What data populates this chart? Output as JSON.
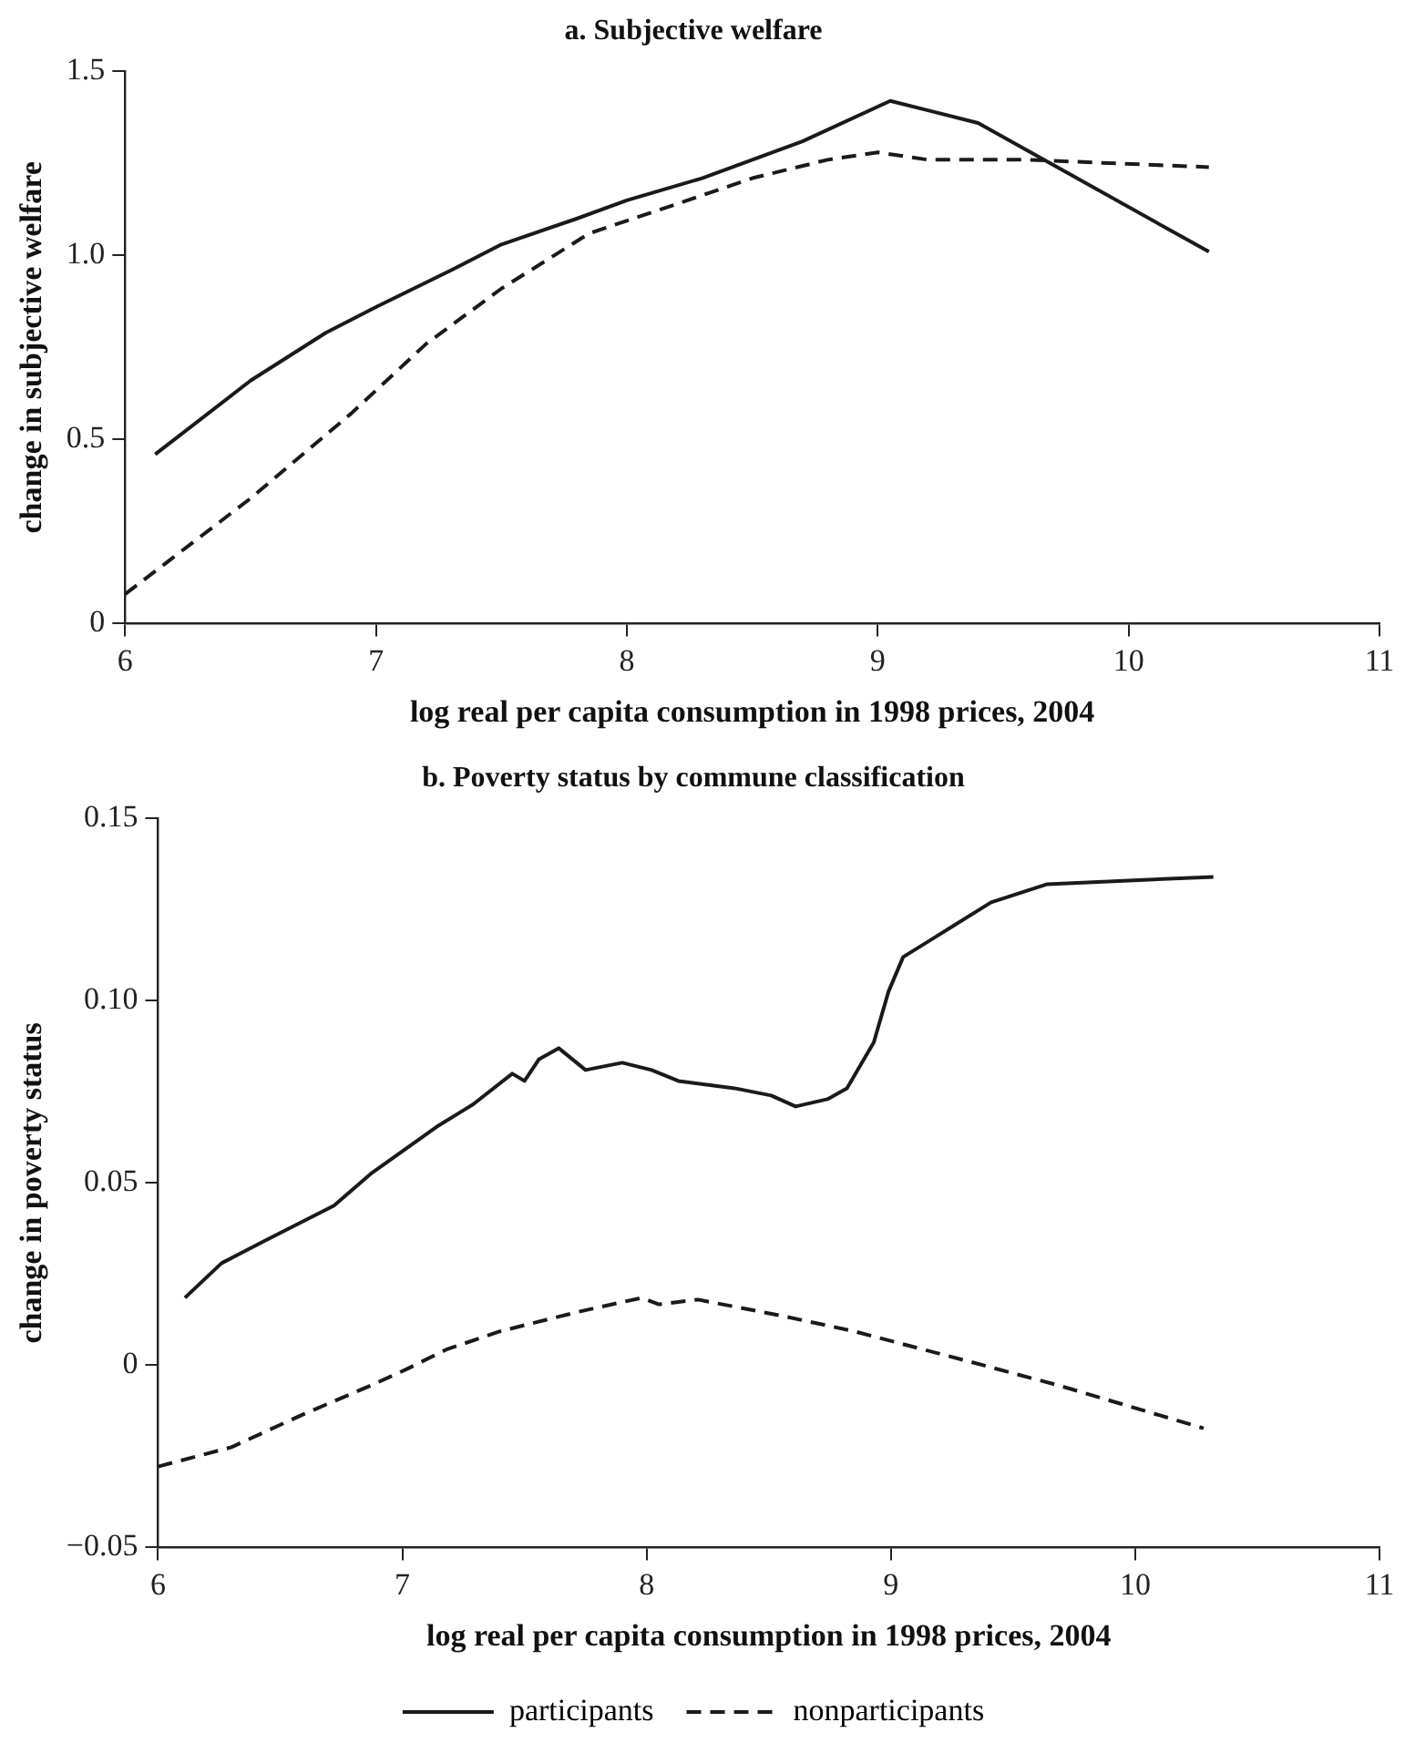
{
  "chart_data": [
    {
      "type": "line",
      "title": "a. Subjective welfare",
      "xlabel": "log real per capita consumption in 1998 prices, 2004",
      "ylabel": "change in subjective welfare",
      "xlim": [
        6,
        11
      ],
      "xticks": [
        6,
        7,
        8,
        9,
        10,
        11
      ],
      "ylim": [
        0,
        1.5
      ],
      "yticks": [
        0,
        0.5,
        {
          "value": 1,
          "label": "1.0"
        },
        1.5
      ],
      "grid": false,
      "legend": false,
      "marker": "none",
      "series": [
        {
          "color": "#1a1a1a",
          "line_style": "solid",
          "x": [
            6.12,
            6.5,
            6.8,
            7.0,
            7.3,
            7.5,
            7.8,
            8.0,
            8.3,
            8.5,
            8.7,
            9.05,
            9.4,
            10.32
          ],
          "values": [
            0.46,
            0.66,
            0.79,
            0.86,
            0.96,
            1.03,
            1.1,
            1.15,
            1.21,
            1.26,
            1.31,
            1.42,
            1.36,
            1.01
          ]
        },
        {
          "color": "#1a1a1a",
          "line_style": "dashed",
          "x": [
            6.0,
            6.5,
            6.9,
            7.2,
            7.5,
            7.85,
            8.2,
            8.5,
            8.8,
            9.0,
            9.2,
            9.6,
            10.32
          ],
          "values": [
            0.08,
            0.34,
            0.57,
            0.76,
            0.91,
            1.06,
            1.14,
            1.21,
            1.26,
            1.28,
            1.26,
            1.26,
            1.24
          ]
        }
      ]
    },
    {
      "type": "line",
      "title": "b. Poverty status by commune classification",
      "xlabel": "log real per capita consumption in 1998 prices, 2004",
      "ylabel": "change in poverty status",
      "xlim": [
        6,
        11
      ],
      "xticks": [
        6,
        7,
        8,
        9,
        10,
        11
      ],
      "ylim": [
        -0.05,
        0.15
      ],
      "yticks": [
        {
          "value": -0.05,
          "label": "−0.05"
        },
        0,
        0.05,
        {
          "value": 0.1,
          "label": "0.10"
        },
        0.15
      ],
      "grid": false,
      "legend": "bottom",
      "marker": "none",
      "series": [
        {
          "name": "participants",
          "color": "#1a1a1a",
          "line_style": "solid",
          "x": [
            6.11,
            6.26,
            6.45,
            6.72,
            6.87,
            7.14,
            7.29,
            7.45,
            7.5,
            7.56,
            7.64,
            7.75,
            7.9,
            8.02,
            8.13,
            8.36,
            8.51,
            8.61,
            8.74,
            8.82,
            8.93,
            8.99,
            9.05,
            9.41,
            9.64,
            10.32
          ],
          "values": [
            0.0185,
            0.028,
            0.0346,
            0.0438,
            0.0525,
            0.0654,
            0.0716,
            0.08,
            0.078,
            0.084,
            0.087,
            0.081,
            0.083,
            0.081,
            0.078,
            0.076,
            0.074,
            0.071,
            0.073,
            0.076,
            0.0886,
            0.1025,
            0.112,
            0.127,
            0.132,
            0.134
          ]
        },
        {
          "name": "nonparticipants",
          "color": "#1a1a1a",
          "line_style": "dashed",
          "x": [
            6.0,
            6.3,
            6.6,
            6.87,
            7.02,
            7.18,
            7.4,
            7.71,
            7.98,
            8.05,
            8.21,
            8.55,
            8.85,
            9.31,
            9.69,
            10.28
          ],
          "values": [
            -0.0278,
            -0.0225,
            -0.0133,
            -0.0056,
            -0.001,
            0.0043,
            0.0093,
            0.0145,
            0.0185,
            0.0167,
            0.018,
            0.0136,
            0.0093,
            0.0012,
            -0.0056,
            -0.0173
          ]
        }
      ]
    }
  ]
}
